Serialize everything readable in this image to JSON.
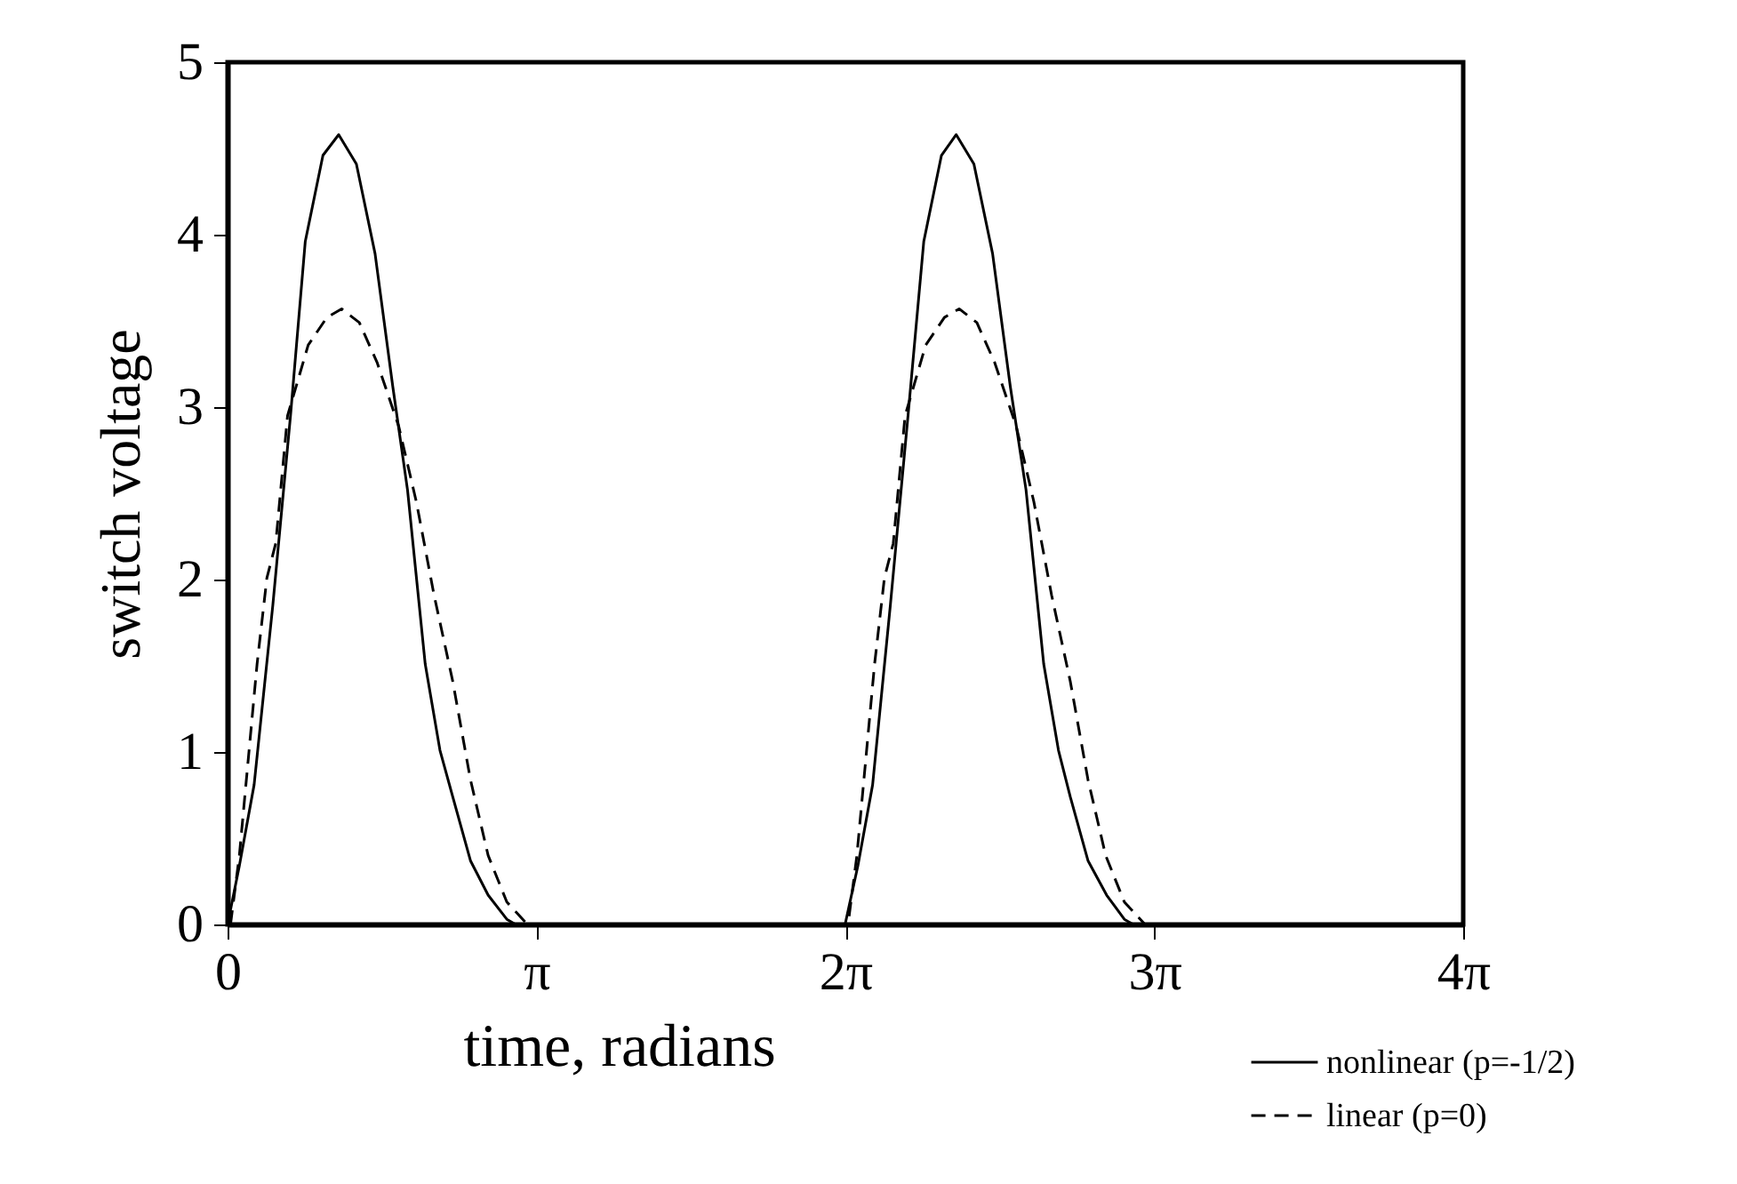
{
  "chart_data": {
    "type": "line",
    "xlabel": "time, radians",
    "ylabel": "switch voltage",
    "xlim": [
      0,
      12.566
    ],
    "xticks": [
      0,
      {
        "value": 3.1416,
        "label": "π"
      },
      {
        "value": 6.2832,
        "label": "2π"
      },
      {
        "value": 9.4248,
        "label": "3π"
      },
      {
        "value": 12.566,
        "label": "4π"
      }
    ],
    "ylim": [
      0,
      5
    ],
    "yticks": [
      0,
      1,
      2,
      3,
      4,
      5
    ],
    "grid": false,
    "legend": "bottom right",
    "marker": "none",
    "series": [
      {
        "name": "nonlinear (p=-1/2)",
        "color": "#000000",
        "line_style": "solid",
        "x": [
          0,
          0.12,
          0.27,
          0.46,
          0.64,
          0.79,
          0.97,
          1.13,
          1.31,
          1.5,
          1.68,
          1.83,
          2.01,
          2.16,
          2.29,
          2.47,
          2.65,
          2.84,
          2.93,
          6.28,
          6.41,
          6.56,
          6.74,
          6.92,
          7.08,
          7.26,
          7.41,
          7.59,
          7.78,
          7.96,
          8.12,
          8.3,
          8.45,
          8.57,
          8.75,
          8.94,
          9.12,
          9.21
        ],
        "values": [
          0,
          0.34,
          0.81,
          1.85,
          2.95,
          3.96,
          4.46,
          4.58,
          4.41,
          3.89,
          3.12,
          2.52,
          1.51,
          1.01,
          0.74,
          0.37,
          0.17,
          0.03,
          0,
          0,
          0.34,
          0.81,
          1.85,
          2.95,
          3.96,
          4.46,
          4.58,
          4.41,
          3.89,
          3.12,
          2.52,
          1.51,
          1.01,
          0.74,
          0.37,
          0.17,
          0.03,
          0
        ]
      },
      {
        "name": "linear (p=0)",
        "color": "#000000",
        "line_style": "dashed",
        "x": [
          0.03,
          0.12,
          0.3,
          0.4,
          0.49,
          0.61,
          0.82,
          1.01,
          1.16,
          1.34,
          1.52,
          1.74,
          1.92,
          2.1,
          2.29,
          2.47,
          2.65,
          2.84,
          3.05,
          6.31,
          6.4,
          6.58,
          6.68,
          6.77,
          6.89,
          7.1,
          7.29,
          7.44,
          7.62,
          7.8,
          8.02,
          8.2,
          8.38,
          8.57,
          8.75,
          8.93,
          9.12,
          9.33
        ],
        "values": [
          0,
          0.4,
          1.51,
          2.01,
          2.21,
          2.95,
          3.36,
          3.52,
          3.57,
          3.49,
          3.26,
          2.89,
          2.45,
          1.91,
          1.41,
          0.84,
          0.4,
          0.13,
          0,
          0,
          0.4,
          1.51,
          2.01,
          2.21,
          2.95,
          3.36,
          3.52,
          3.57,
          3.49,
          3.26,
          2.89,
          2.45,
          1.91,
          1.41,
          0.84,
          0.4,
          0.13,
          0
        ]
      }
    ]
  }
}
